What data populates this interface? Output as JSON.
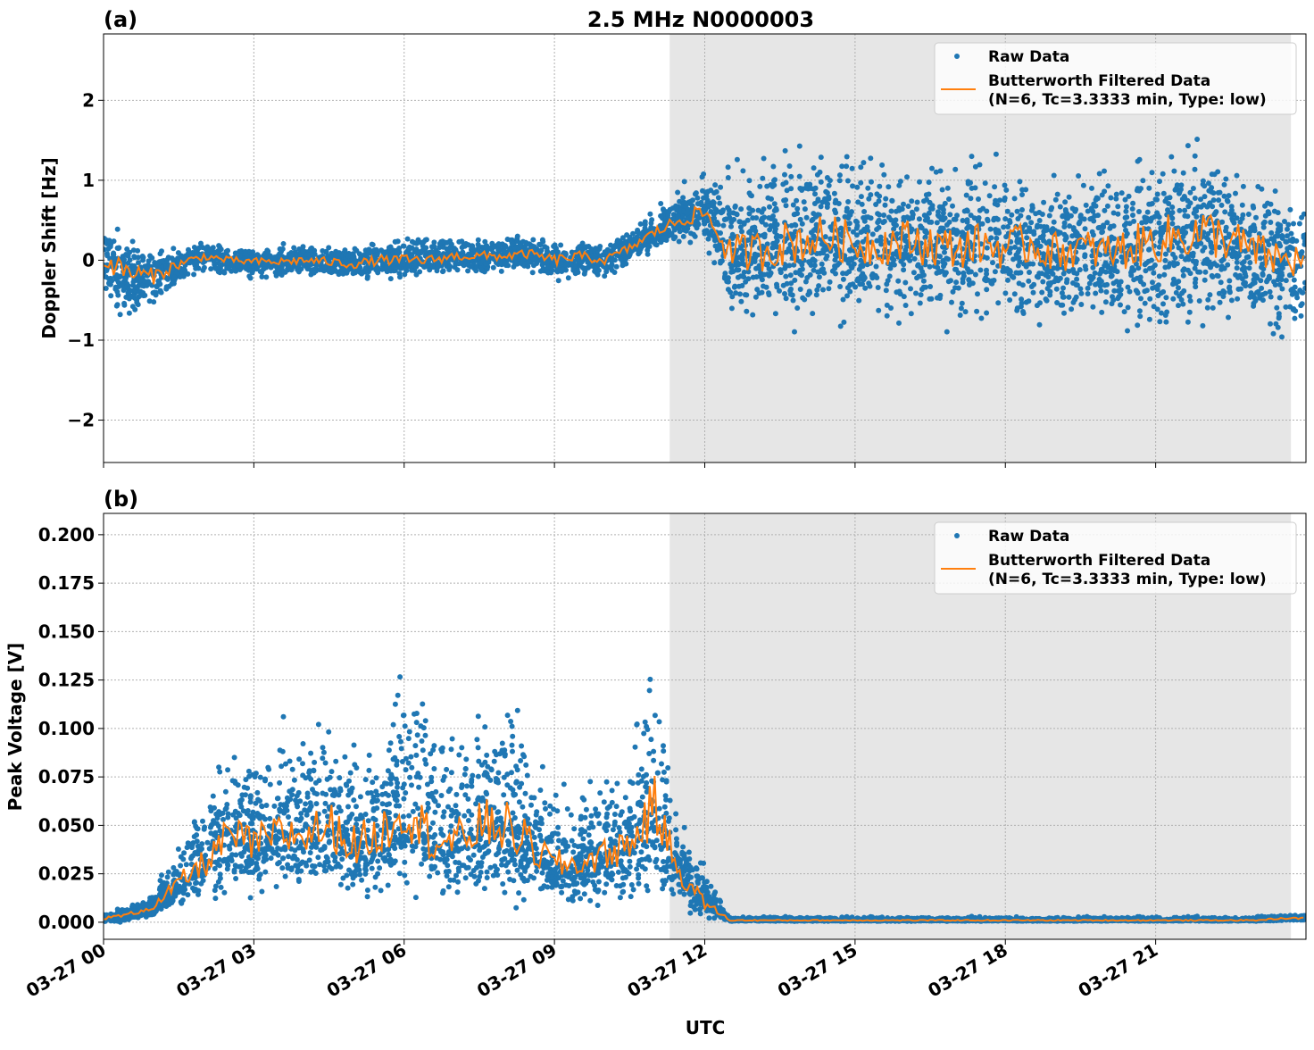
{
  "title": "2.5 MHz N0000003",
  "x_ticks": [
    "03-27 00",
    "03-27 03",
    "03-27 06",
    "03-27 09",
    "03-27 12",
    "03-27 15",
    "03-27 18",
    "03-27 21"
  ],
  "xlabel": "UTC",
  "legend": {
    "raw": "Raw Data",
    "filtered_line1": "Butterworth Filtered Data",
    "filtered_line2": "(N=6, Tc=3.3333 min, Type: low)"
  },
  "colors": {
    "raw": "#1f77b4",
    "filtered": "#ff7f0e",
    "shade": "#e6e6e6"
  },
  "chart_data": [
    {
      "type": "scatter",
      "panel_label": "(a)",
      "ylabel": "Doppler Shift [Hz]",
      "x_unit": "hours UTC on 03-27",
      "xlim": [
        0,
        24
      ],
      "ylim": [
        -2.53,
        2.83
      ],
      "y_ticks": [
        -2,
        -1,
        0,
        1,
        2
      ],
      "y_tick_labels": [
        "−2",
        "−1",
        "0",
        "1",
        "2"
      ],
      "grid": true,
      "legend_position": "top-right",
      "shaded_span": [
        11.3,
        23.7
      ],
      "x": [
        0,
        0.5,
        1,
        1.5,
        2,
        2.5,
        3,
        3.5,
        4,
        4.5,
        5,
        5.5,
        6,
        6.5,
        7,
        7.5,
        8,
        8.5,
        9,
        9.5,
        10,
        10.5,
        11,
        11.5,
        12,
        12.5,
        13,
        13.5,
        14,
        14.5,
        15,
        15.5,
        16,
        16.5,
        17,
        17.5,
        18,
        18.5,
        19,
        19.5,
        20,
        20.5,
        21,
        21.5,
        22,
        22.5,
        23,
        23.5,
        24
      ],
      "series": [
        {
          "name": "Butterworth Filtered Data",
          "kind": "line",
          "values": [
            0.0,
            -0.15,
            -0.2,
            -0.05,
            0.05,
            0.0,
            -0.02,
            -0.02,
            0.0,
            -0.02,
            -0.05,
            0.0,
            0.0,
            0.0,
            0.05,
            0.05,
            0.05,
            0.08,
            0.0,
            0.05,
            0.0,
            0.15,
            0.35,
            0.5,
            0.6,
            0.1,
            0.1,
            0.2,
            0.25,
            0.3,
            0.2,
            0.2,
            0.25,
            0.2,
            0.15,
            0.2,
            0.15,
            0.2,
            0.1,
            0.15,
            0.1,
            0.15,
            0.25,
            0.3,
            0.35,
            0.25,
            0.1,
            0.0,
            0.0
          ]
        },
        {
          "name": "Raw Data",
          "kind": "envelope_lower",
          "values": [
            -0.5,
            -0.8,
            -0.7,
            -0.4,
            -0.15,
            -0.2,
            -0.25,
            -0.25,
            -0.2,
            -0.25,
            -0.25,
            -0.25,
            -0.25,
            -0.2,
            -0.15,
            -0.2,
            -0.15,
            -0.15,
            -0.3,
            -0.25,
            -0.25,
            -0.05,
            0.1,
            0.2,
            0.2,
            -0.6,
            -0.7,
            -0.8,
            -0.85,
            -0.8,
            -0.85,
            -0.8,
            -0.8,
            -0.85,
            -0.8,
            -0.85,
            -0.85,
            -0.9,
            -0.85,
            -0.8,
            -0.8,
            -0.9,
            -1.0,
            -1.0,
            -1.0,
            -0.9,
            -1.0,
            -1.2,
            -1.0
          ]
        },
        {
          "name": "Raw Data",
          "kind": "envelope_upper",
          "values": [
            0.5,
            0.3,
            0.1,
            0.15,
            0.25,
            0.15,
            0.15,
            0.18,
            0.2,
            0.2,
            0.2,
            0.25,
            0.3,
            0.3,
            0.3,
            0.3,
            0.3,
            0.3,
            0.25,
            0.25,
            0.2,
            0.4,
            0.65,
            0.9,
            1.1,
            1.2,
            1.4,
            1.5,
            1.5,
            1.4,
            1.4,
            1.4,
            1.4,
            1.4,
            1.3,
            1.3,
            1.3,
            1.2,
            1.2,
            1.2,
            1.2,
            1.3,
            1.4,
            1.5,
            1.5,
            1.4,
            1.0,
            0.9,
            0.8
          ]
        }
      ]
    },
    {
      "type": "scatter",
      "panel_label": "(b)",
      "ylabel": "Peak Voltage [V]",
      "x_unit": "hours UTC on 03-27",
      "xlim": [
        0,
        24
      ],
      "ylim": [
        -0.0088,
        0.211
      ],
      "y_ticks": [
        0,
        0.025,
        0.05,
        0.075,
        0.1,
        0.125,
        0.15,
        0.175,
        0.2
      ],
      "y_tick_labels": [
        "0.000",
        "0.025",
        "0.050",
        "0.075",
        "0.100",
        "0.125",
        "0.150",
        "0.175",
        "0.200"
      ],
      "grid": true,
      "legend_position": "top-right",
      "shaded_span": [
        11.3,
        23.7
      ],
      "x": [
        0,
        0.5,
        1,
        1.5,
        2,
        2.5,
        3,
        3.5,
        4,
        4.5,
        5,
        5.5,
        6,
        6.5,
        7,
        7.5,
        8,
        8.5,
        9,
        9.5,
        10,
        10.5,
        11,
        11.5,
        12,
        12.5,
        13,
        13.5,
        14,
        14.5,
        15,
        15.5,
        16,
        16.5,
        17,
        17.5,
        18,
        18.5,
        19,
        19.5,
        20,
        20.5,
        21,
        21.5,
        22,
        22.5,
        23,
        23.5,
        24
      ],
      "series": [
        {
          "name": "Butterworth Filtered Data",
          "kind": "line",
          "values": [
            0.002,
            0.004,
            0.008,
            0.02,
            0.03,
            0.045,
            0.04,
            0.045,
            0.045,
            0.05,
            0.04,
            0.045,
            0.06,
            0.045,
            0.04,
            0.05,
            0.05,
            0.04,
            0.03,
            0.03,
            0.035,
            0.04,
            0.06,
            0.025,
            0.01,
            0.001,
            0.001,
            0.001,
            0.001,
            0.001,
            0.001,
            0.001,
            0.001,
            0.001,
            0.001,
            0.001,
            0.001,
            0.001,
            0.001,
            0.001,
            0.001,
            0.001,
            0.001,
            0.001,
            0.001,
            0.001,
            0.001,
            0.002,
            0.002
          ]
        },
        {
          "name": "Raw Data",
          "kind": "envelope_lower",
          "values": [
            0,
            0,
            0.002,
            0.005,
            0.008,
            0.01,
            0.01,
            0.01,
            0.01,
            0.01,
            0.01,
            0.01,
            0.01,
            0.01,
            0.01,
            0.01,
            0.01,
            0.01,
            0.008,
            0.008,
            0.01,
            0.01,
            0.015,
            0.005,
            0.002,
            0.0005,
            0.0005,
            0.0005,
            0.0005,
            0.0005,
            0.0005,
            0.0005,
            0.0005,
            0.0005,
            0.0005,
            0.0005,
            0.0005,
            0.0005,
            0.0005,
            0.0005,
            0.0005,
            0.0005,
            0.0005,
            0.0005,
            0.0005,
            0.0005,
            0.0005,
            0.0005,
            0.0005
          ]
        },
        {
          "name": "Raw Data",
          "kind": "envelope_upper",
          "values": [
            0.005,
            0.008,
            0.015,
            0.045,
            0.07,
            0.09,
            0.09,
            0.1,
            0.1,
            0.11,
            0.1,
            0.1,
            0.14,
            0.11,
            0.1,
            0.12,
            0.12,
            0.1,
            0.07,
            0.07,
            0.075,
            0.1,
            0.14,
            0.05,
            0.03,
            0.003,
            0.003,
            0.003,
            0.003,
            0.003,
            0.003,
            0.003,
            0.003,
            0.003,
            0.003,
            0.003,
            0.003,
            0.003,
            0.003,
            0.003,
            0.003,
            0.003,
            0.003,
            0.003,
            0.003,
            0.003,
            0.003,
            0.004,
            0.004
          ]
        }
      ]
    }
  ]
}
